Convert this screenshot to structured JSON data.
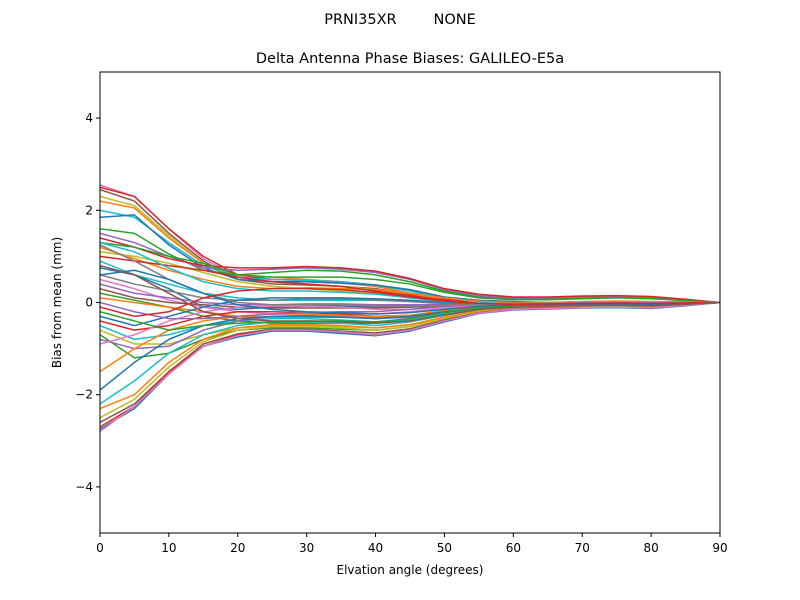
{
  "figure": {
    "suptitle": "PRNI35XR        NONE"
  },
  "chart_data": {
    "type": "line",
    "title": "Delta Antenna Phase Biases: GALILEO-E5a",
    "xlabel": "Elvation angle (degrees)",
    "ylabel": "Bias from mean (mm)",
    "xlim": [
      0,
      90
    ],
    "ylim": [
      -5,
      5
    ],
    "xticks": [
      0,
      10,
      20,
      30,
      40,
      50,
      60,
      70,
      80,
      90
    ],
    "xtick_labels": [
      "0",
      "10",
      "20",
      "30",
      "40",
      "50",
      "60",
      "70",
      "80",
      "90"
    ],
    "yticks": [
      -4,
      -2,
      0,
      2,
      4
    ],
    "ytick_labels": [
      "−4",
      "−2",
      "0",
      "2",
      "4"
    ],
    "grid": false,
    "x": [
      0,
      5,
      10,
      15,
      20,
      25,
      30,
      35,
      40,
      45,
      50,
      55,
      60,
      65,
      70,
      75,
      80,
      85,
      90
    ],
    "series": [
      {
        "color": "#e377c2",
        "values": [
          2.55,
          2.3,
          1.6,
          0.95,
          0.55,
          0.45,
          0.45,
          0.42,
          0.35,
          0.2,
          0.05,
          -0.05,
          -0.1,
          -0.08,
          -0.05,
          -0.05,
          -0.08,
          -0.05,
          0
        ]
      },
      {
        "color": "#d62728",
        "values": [
          2.5,
          2.3,
          1.6,
          1.0,
          0.6,
          0.5,
          0.48,
          0.45,
          0.38,
          0.25,
          0.08,
          -0.02,
          -0.08,
          -0.08,
          -0.05,
          -0.05,
          -0.06,
          -0.04,
          0
        ]
      },
      {
        "color": "#8c564b",
        "values": [
          2.45,
          2.2,
          1.5,
          0.9,
          0.5,
          0.4,
          0.38,
          0.35,
          0.3,
          0.18,
          0.05,
          -0.03,
          -0.08,
          -0.07,
          -0.06,
          -0.06,
          -0.07,
          -0.04,
          0
        ]
      },
      {
        "color": "#bcbd22",
        "values": [
          2.3,
          2.1,
          1.45,
          0.85,
          0.55,
          0.45,
          0.4,
          0.35,
          0.28,
          0.15,
          0.02,
          -0.05,
          -0.1,
          -0.1,
          -0.08,
          -0.07,
          -0.07,
          -0.04,
          0
        ]
      },
      {
        "color": "#ff7f0e",
        "values": [
          2.2,
          2.05,
          1.4,
          0.85,
          0.6,
          0.55,
          0.5,
          0.45,
          0.35,
          0.2,
          0.05,
          -0.02,
          -0.06,
          -0.05,
          -0.03,
          -0.02,
          -0.03,
          -0.02,
          0
        ]
      },
      {
        "color": "#17becf",
        "values": [
          2.0,
          1.85,
          1.3,
          0.8,
          0.55,
          0.5,
          0.48,
          0.45,
          0.38,
          0.25,
          0.1,
          0.02,
          -0.02,
          -0.02,
          0.0,
          0.02,
          0.0,
          0.0,
          0
        ]
      },
      {
        "color": "#1f77b4",
        "values": [
          1.85,
          1.9,
          1.25,
          0.75,
          0.5,
          0.45,
          0.45,
          0.42,
          0.38,
          0.28,
          0.12,
          0.05,
          0.02,
          0.0,
          0.02,
          0.03,
          0.02,
          0.01,
          0
        ]
      },
      {
        "color": "#2ca02c",
        "values": [
          1.6,
          1.5,
          1.05,
          0.7,
          0.6,
          0.65,
          0.7,
          0.68,
          0.6,
          0.45,
          0.25,
          0.12,
          0.08,
          0.08,
          0.1,
          0.12,
          0.1,
          0.05,
          0
        ]
      },
      {
        "color": "#9467bd",
        "values": [
          1.5,
          1.3,
          1.0,
          0.75,
          0.7,
          0.72,
          0.75,
          0.72,
          0.65,
          0.5,
          0.28,
          0.15,
          0.1,
          0.1,
          0.12,
          0.13,
          0.12,
          0.06,
          0
        ]
      },
      {
        "color": "#d62728",
        "values": [
          1.4,
          1.2,
          0.95,
          0.8,
          0.75,
          0.75,
          0.78,
          0.75,
          0.68,
          0.52,
          0.3,
          0.18,
          0.12,
          0.12,
          0.14,
          0.15,
          0.13,
          0.07,
          0
        ]
      },
      {
        "color": "#2ca02c",
        "values": [
          1.3,
          1.2,
          1.0,
          0.85,
          0.6,
          0.55,
          0.55,
          0.55,
          0.5,
          0.4,
          0.22,
          0.1,
          0.06,
          0.06,
          0.08,
          0.1,
          0.08,
          0.04,
          0
        ]
      },
      {
        "color": "#ff7f0e",
        "values": [
          1.2,
          0.95,
          0.7,
          0.5,
          0.35,
          0.3,
          0.32,
          0.3,
          0.28,
          0.2,
          0.1,
          0.03,
          0.0,
          0.0,
          0.02,
          0.03,
          0.02,
          0.01,
          0
        ]
      },
      {
        "color": "#bcbd22",
        "values": [
          1.1,
          1.0,
          0.85,
          0.65,
          0.45,
          0.35,
          0.3,
          0.25,
          0.2,
          0.12,
          0.04,
          -0.02,
          -0.05,
          -0.05,
          -0.03,
          -0.02,
          -0.03,
          -0.02,
          0
        ]
      },
      {
        "color": "#d62728",
        "values": [
          1.0,
          0.9,
          0.8,
          0.7,
          0.55,
          0.45,
          0.4,
          0.35,
          0.25,
          0.15,
          0.05,
          -0.02,
          -0.05,
          -0.04,
          -0.02,
          -0.01,
          -0.02,
          -0.01,
          0
        ]
      },
      {
        "color": "#17becf",
        "values": [
          0.9,
          0.6,
          0.4,
          0.2,
          0.1,
          0.05,
          0.05,
          0.05,
          0.05,
          0.03,
          0.0,
          -0.02,
          -0.03,
          -0.03,
          -0.02,
          -0.01,
          -0.02,
          -0.01,
          0
        ]
      },
      {
        "color": "#1f77b4",
        "values": [
          0.75,
          0.6,
          0.3,
          -0.1,
          -0.15,
          -0.1,
          -0.08,
          -0.08,
          -0.1,
          -0.1,
          -0.08,
          -0.05,
          -0.04,
          -0.03,
          -0.02,
          -0.02,
          -0.03,
          -0.02,
          0
        ]
      },
      {
        "color": "#7f7f7f",
        "values": [
          0.6,
          0.4,
          0.25,
          0.1,
          0.05,
          0.05,
          0.08,
          0.08,
          0.05,
          0.02,
          -0.02,
          -0.04,
          -0.05,
          -0.04,
          -0.03,
          -0.02,
          -0.03,
          -0.02,
          0
        ]
      },
      {
        "color": "#e377c2",
        "values": [
          0.5,
          0.3,
          0.05,
          -0.1,
          -0.2,
          -0.25,
          -0.25,
          -0.25,
          -0.25,
          -0.2,
          -0.12,
          -0.08,
          -0.06,
          -0.05,
          -0.04,
          -0.04,
          -0.05,
          -0.03,
          0
        ]
      },
      {
        "color": "#9467bd",
        "values": [
          0.4,
          0.2,
          0.1,
          0.0,
          -0.05,
          -0.05,
          -0.03,
          -0.03,
          -0.05,
          -0.05,
          -0.04,
          -0.03,
          -0.02,
          -0.02,
          -0.01,
          -0.01,
          -0.02,
          -0.01,
          0
        ]
      },
      {
        "color": "#8c564b",
        "values": [
          0.3,
          0.1,
          0.0,
          -0.05,
          -0.1,
          -0.12,
          -0.12,
          -0.12,
          -0.12,
          -0.1,
          -0.06,
          -0.04,
          -0.03,
          -0.02,
          -0.02,
          -0.02,
          -0.03,
          -0.02,
          0
        ]
      },
      {
        "color": "#2ca02c",
        "values": [
          0.2,
          0.05,
          -0.1,
          -0.3,
          -0.4,
          -0.45,
          -0.45,
          -0.45,
          -0.45,
          -0.38,
          -0.25,
          -0.15,
          -0.1,
          -0.08,
          -0.06,
          -0.06,
          -0.07,
          -0.04,
          0
        ]
      },
      {
        "color": "#ff7f0e",
        "values": [
          0.1,
          0.0,
          -0.1,
          -0.2,
          -0.3,
          -0.32,
          -0.32,
          -0.32,
          -0.33,
          -0.3,
          -0.2,
          -0.12,
          -0.08,
          -0.06,
          -0.05,
          -0.05,
          -0.06,
          -0.03,
          0
        ]
      },
      {
        "color": "#1f77b4",
        "values": [
          -0.3,
          -0.5,
          -0.3,
          -0.1,
          0.05,
          0.1,
          0.1,
          0.1,
          0.08,
          0.05,
          0.0,
          -0.03,
          -0.05,
          -0.04,
          -0.03,
          -0.03,
          -0.04,
          -0.02,
          0
        ]
      },
      {
        "color": "#d62728",
        "values": [
          -0.4,
          -0.6,
          -0.5,
          -0.3,
          -0.2,
          -0.2,
          -0.22,
          -0.25,
          -0.3,
          -0.28,
          -0.18,
          -0.1,
          -0.07,
          -0.05,
          -0.04,
          -0.04,
          -0.05,
          -0.03,
          0
        ]
      },
      {
        "color": "#17becf",
        "values": [
          -0.5,
          -0.8,
          -0.7,
          -0.5,
          -0.4,
          -0.35,
          -0.35,
          -0.38,
          -0.42,
          -0.38,
          -0.25,
          -0.15,
          -0.1,
          -0.08,
          -0.06,
          -0.06,
          -0.07,
          -0.04,
          0
        ]
      },
      {
        "color": "#bcbd22",
        "values": [
          -0.6,
          -0.9,
          -0.9,
          -0.7,
          -0.55,
          -0.5,
          -0.5,
          -0.52,
          -0.55,
          -0.48,
          -0.32,
          -0.2,
          -0.14,
          -0.12,
          -0.1,
          -0.1,
          -0.1,
          -0.05,
          0
        ]
      },
      {
        "color": "#2ca02c",
        "values": [
          -0.7,
          -1.2,
          -1.1,
          -0.8,
          -0.6,
          -0.55,
          -0.55,
          -0.58,
          -0.6,
          -0.52,
          -0.35,
          -0.22,
          -0.15,
          -0.13,
          -0.11,
          -0.11,
          -0.12,
          -0.06,
          0
        ]
      },
      {
        "color": "#9467bd",
        "values": [
          -0.8,
          -1.0,
          -0.95,
          -0.6,
          -0.4,
          -0.3,
          -0.28,
          -0.3,
          -0.35,
          -0.32,
          -0.2,
          -0.12,
          -0.08,
          -0.06,
          -0.05,
          -0.05,
          -0.06,
          -0.03,
          0
        ]
      },
      {
        "color": "#e377c2",
        "values": [
          -0.9,
          -0.7,
          -0.4,
          -0.2,
          -0.1,
          -0.08,
          -0.08,
          -0.1,
          -0.15,
          -0.15,
          -0.1,
          -0.06,
          -0.04,
          -0.03,
          -0.02,
          -0.02,
          -0.03,
          -0.02,
          0
        ]
      },
      {
        "color": "#ff7f0e",
        "values": [
          -1.5,
          -1.0,
          -0.6,
          -0.4,
          -0.3,
          -0.25,
          -0.25,
          -0.28,
          -0.3,
          -0.28,
          -0.18,
          -0.1,
          -0.07,
          -0.05,
          -0.04,
          -0.04,
          -0.05,
          -0.03,
          0
        ]
      },
      {
        "color": "#1f77b4",
        "values": [
          -1.9,
          -1.3,
          -0.8,
          -0.5,
          -0.35,
          -0.3,
          -0.3,
          -0.32,
          -0.35,
          -0.3,
          -0.2,
          -0.12,
          -0.08,
          -0.06,
          -0.05,
          -0.05,
          -0.06,
          -0.03,
          0
        ]
      },
      {
        "color": "#17becf",
        "values": [
          -2.2,
          -1.7,
          -1.1,
          -0.7,
          -0.5,
          -0.42,
          -0.42,
          -0.45,
          -0.5,
          -0.42,
          -0.28,
          -0.16,
          -0.1,
          -0.08,
          -0.07,
          -0.07,
          -0.08,
          -0.04,
          0
        ]
      },
      {
        "color": "#ff7f0e",
        "values": [
          -2.3,
          -2.0,
          -1.3,
          -0.8,
          -0.55,
          -0.48,
          -0.48,
          -0.5,
          -0.55,
          -0.48,
          -0.32,
          -0.18,
          -0.12,
          -0.1,
          -0.08,
          -0.08,
          -0.09,
          -0.05,
          0
        ]
      },
      {
        "color": "#bcbd22",
        "values": [
          -2.5,
          -2.1,
          -1.4,
          -0.85,
          -0.6,
          -0.52,
          -0.52,
          -0.55,
          -0.6,
          -0.52,
          -0.35,
          -0.2,
          -0.13,
          -0.11,
          -0.09,
          -0.09,
          -0.1,
          -0.05,
          0
        ]
      },
      {
        "color": "#8c564b",
        "values": [
          -2.6,
          -2.2,
          -1.5,
          -0.9,
          -0.68,
          -0.58,
          -0.58,
          -0.62,
          -0.66,
          -0.57,
          -0.38,
          -0.22,
          -0.14,
          -0.12,
          -0.1,
          -0.1,
          -0.11,
          -0.06,
          0
        ]
      },
      {
        "color": "#d62728",
        "values": [
          -2.7,
          -2.25,
          -1.5,
          -0.95,
          -0.7,
          -0.6,
          -0.6,
          -0.65,
          -0.7,
          -0.6,
          -0.4,
          -0.23,
          -0.15,
          -0.13,
          -0.11,
          -0.1,
          -0.12,
          -0.06,
          0
        ]
      },
      {
        "color": "#1f77b4",
        "values": [
          -2.75,
          -2.3,
          -1.55,
          -0.95,
          -0.75,
          -0.62,
          -0.62,
          -0.67,
          -0.72,
          -0.62,
          -0.42,
          -0.24,
          -0.16,
          -0.14,
          -0.12,
          -0.11,
          -0.13,
          -0.07,
          0
        ]
      },
      {
        "color": "#e377c2",
        "values": [
          -2.8,
          -2.25,
          -1.55,
          -0.95,
          -0.72,
          -0.6,
          -0.6,
          -0.64,
          -0.7,
          -0.6,
          -0.4,
          -0.23,
          -0.15,
          -0.13,
          -0.11,
          -0.1,
          -0.12,
          -0.06,
          0
        ]
      },
      {
        "color": "#2ca02c",
        "values": [
          -0.2,
          -0.4,
          -0.6,
          -0.5,
          -0.45,
          -0.42,
          -0.4,
          -0.4,
          -0.42,
          -0.35,
          -0.22,
          -0.12,
          -0.08,
          -0.06,
          -0.05,
          -0.05,
          -0.06,
          -0.03,
          0
        ]
      },
      {
        "color": "#9467bd",
        "values": [
          0.0,
          -0.2,
          -0.35,
          -0.35,
          -0.3,
          -0.25,
          -0.22,
          -0.2,
          -0.2,
          -0.15,
          -0.08,
          -0.04,
          -0.02,
          -0.02,
          -0.01,
          0.0,
          -0.01,
          0.0,
          0
        ]
      },
      {
        "color": "#7f7f7f",
        "values": [
          1.25,
          0.9,
          0.5,
          0.2,
          0.0,
          -0.05,
          -0.05,
          -0.05,
          -0.08,
          -0.08,
          -0.06,
          -0.04,
          -0.03,
          -0.02,
          -0.02,
          -0.02,
          -0.03,
          -0.02,
          0
        ]
      },
      {
        "color": "#17becf",
        "values": [
          1.3,
          1.1,
          0.75,
          0.45,
          0.3,
          0.25,
          0.25,
          0.22,
          0.18,
          0.1,
          0.02,
          -0.02,
          -0.04,
          -0.03,
          -0.02,
          -0.01,
          -0.02,
          -0.01,
          0
        ]
      },
      {
        "color": "#1f77b4",
        "values": [
          0.6,
          0.7,
          0.5,
          0.2,
          -0.05,
          -0.15,
          -0.2,
          -0.22,
          -0.25,
          -0.22,
          -0.15,
          -0.08,
          -0.05,
          -0.04,
          -0.03,
          -0.03,
          -0.04,
          -0.02,
          0
        ]
      },
      {
        "color": "#d62728",
        "values": [
          -0.1,
          -0.3,
          -0.2,
          0.1,
          0.25,
          0.3,
          0.3,
          0.28,
          0.22,
          0.12,
          0.03,
          -0.02,
          -0.04,
          -0.03,
          -0.02,
          -0.01,
          -0.02,
          -0.01,
          0
        ]
      },
      {
        "color": "#8c564b",
        "values": [
          0.8,
          0.6,
          0.2,
          -0.2,
          -0.35,
          -0.4,
          -0.4,
          -0.42,
          -0.45,
          -0.4,
          -0.27,
          -0.15,
          -0.1,
          -0.08,
          -0.06,
          -0.06,
          -0.07,
          -0.04,
          0
        ]
      }
    ]
  }
}
